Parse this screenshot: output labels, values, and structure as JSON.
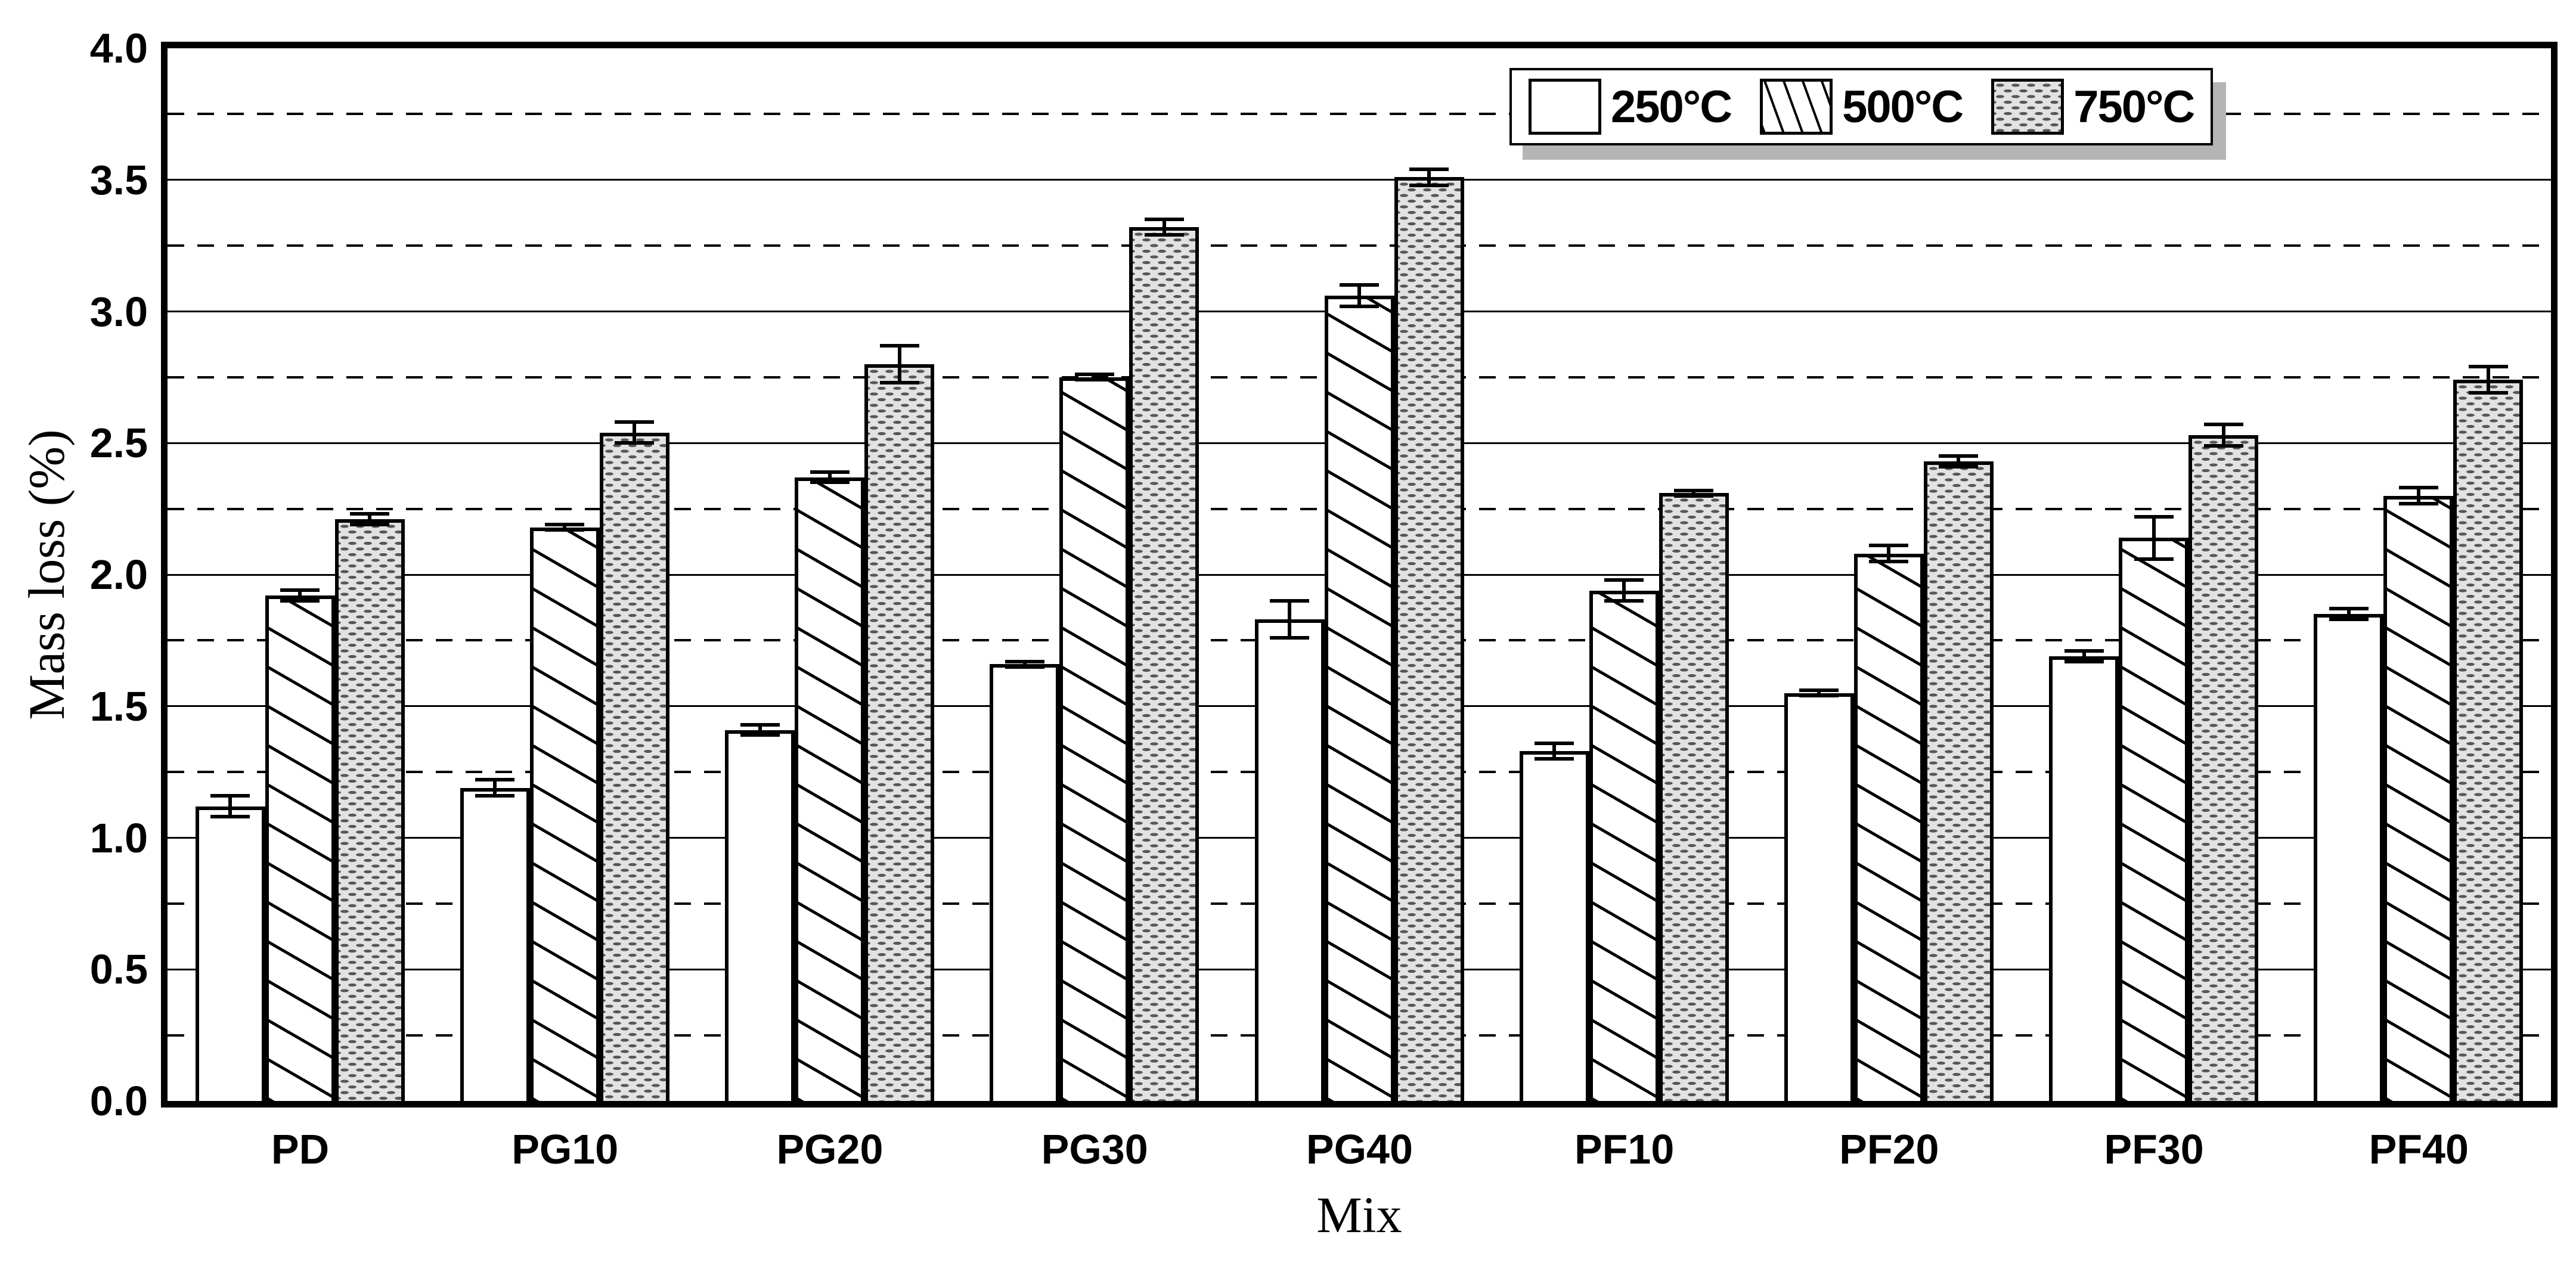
{
  "figure": {
    "y_axis_title": "Mass loss (%)",
    "x_axis_title": "Mix",
    "background_color": "#ffffff"
  },
  "chart_data": {
    "type": "bar",
    "title": "",
    "xlabel": "Mix",
    "ylabel": "Mass loss (%)",
    "ylim": [
      0.0,
      4.0
    ],
    "y_major_step": 0.5,
    "y_minor_step": 0.25,
    "grid": "solid horizontal lines at 0.5 steps, dashed horizontal lines at 0.25 offsets",
    "legend_position": "top-right-inside",
    "y_tick_labels": [
      "4.0",
      "3.5",
      "3.0",
      "2.5",
      "2.0",
      "1.5",
      "1.0",
      "0.5",
      "0.0"
    ],
    "categories": [
      "PD",
      "PG10",
      "PG20",
      "PG30",
      "PG40",
      "PF10",
      "PF20",
      "PF30",
      "PF40"
    ],
    "series": [
      {
        "name": "250°C",
        "pattern": "plain-white",
        "values": [
          1.12,
          1.19,
          1.41,
          1.66,
          1.83,
          1.33,
          1.55,
          1.69,
          1.85
        ],
        "errors": [
          0.04,
          0.03,
          0.02,
          0.01,
          0.07,
          0.03,
          0.01,
          0.02,
          0.02
        ]
      },
      {
        "name": "500°C",
        "pattern": "diagonal-hatch",
        "values": [
          1.92,
          2.18,
          2.37,
          2.75,
          3.06,
          1.94,
          2.08,
          2.14,
          2.3
        ],
        "errors": [
          0.02,
          0.01,
          0.02,
          0.01,
          0.04,
          0.04,
          0.03,
          0.08,
          0.03
        ]
      },
      {
        "name": "750°C",
        "pattern": "gray-stipple",
        "values": [
          2.21,
          2.54,
          2.8,
          3.32,
          3.51,
          2.31,
          2.43,
          2.53,
          2.74
        ],
        "errors": [
          0.02,
          0.04,
          0.07,
          0.03,
          0.03,
          0.01,
          0.02,
          0.04,
          0.05
        ]
      }
    ]
  },
  "colors": {
    "bar_outline": "#000000",
    "stipple_fill": "#e2e2e2",
    "hatch_line": "#000000",
    "legend_shadow": "#b5b5b5",
    "background": "#ffffff"
  }
}
